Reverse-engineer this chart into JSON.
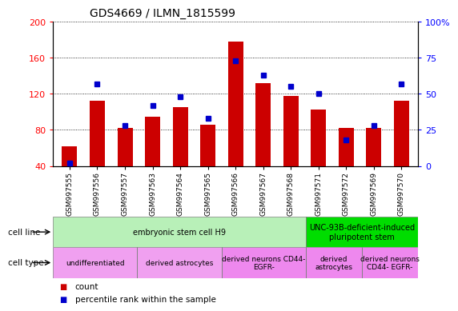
{
  "title": "GDS4669 / ILMN_1815599",
  "samples": [
    "GSM997555",
    "GSM997556",
    "GSM997557",
    "GSM997563",
    "GSM997564",
    "GSM997565",
    "GSM997566",
    "GSM997567",
    "GSM997568",
    "GSM997571",
    "GSM997572",
    "GSM997569",
    "GSM997570"
  ],
  "count_values": [
    62,
    112,
    82,
    95,
    105,
    86,
    178,
    132,
    118,
    103,
    82,
    82,
    112
  ],
  "percentile_values": [
    2,
    57,
    28,
    42,
    48,
    33,
    73,
    63,
    55,
    50,
    18,
    28,
    57
  ],
  "left_ylim": [
    40,
    200
  ],
  "right_ylim": [
    0,
    100
  ],
  "left_yticks": [
    40,
    80,
    120,
    160,
    200
  ],
  "right_yticks": [
    0,
    25,
    50,
    75,
    100
  ],
  "right_yticklabels": [
    "0",
    "25",
    "50",
    "75",
    "100%"
  ],
  "bar_color": "#cc0000",
  "dot_color": "#0000cc",
  "cell_line_groups": [
    {
      "label": "embryonic stem cell H9",
      "start": 0,
      "end": 9,
      "color": "#b8f0b8"
    },
    {
      "label": "UNC-93B-deficient-induced\npluripotent stem",
      "start": 9,
      "end": 13,
      "color": "#00dd00"
    }
  ],
  "cell_type_groups": [
    {
      "label": "undifferentiated",
      "start": 0,
      "end": 3,
      "color": "#f0a0f0"
    },
    {
      "label": "derived astrocytes",
      "start": 3,
      "end": 6,
      "color": "#f0a0f0"
    },
    {
      "label": "derived neurons CD44-\nEGFR-",
      "start": 6,
      "end": 9,
      "color": "#ee88ee"
    },
    {
      "label": "derived\nastrocytes",
      "start": 9,
      "end": 11,
      "color": "#ee88ee"
    },
    {
      "label": "derived neurons\nCD44- EGFR-",
      "start": 11,
      "end": 13,
      "color": "#ee88ee"
    }
  ],
  "legend_count_label": "count",
  "legend_pct_label": "percentile rank within the sample",
  "cell_line_label": "cell line",
  "cell_type_label": "cell type"
}
